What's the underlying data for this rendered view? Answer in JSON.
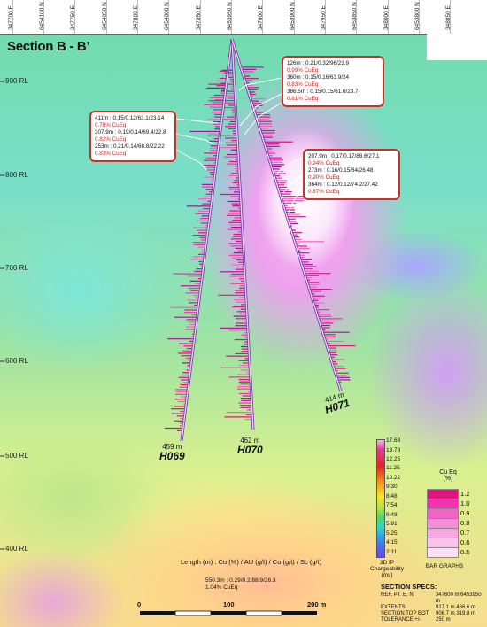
{
  "section_title": "Section B - B’",
  "eastings": [
    "347700 E",
    "6454100 N",
    "347750 E",
    "6454050 N",
    "347800 E",
    "6454000 N",
    "347850 E",
    "6453950 N",
    "347900 E",
    "6453900 N",
    "347950 E",
    "6453850 N",
    "348000 E",
    "6453800 N",
    "348050 E"
  ],
  "elevations": [
    "900 RL",
    "800 RL",
    "700 RL",
    "600 RL",
    "500 RL",
    "400 RL"
  ],
  "callouts": {
    "top_right": {
      "rows": [
        {
          "line": "126m : 0.21/0.32/96/23.9",
          "cueq": "0.99% CuEq"
        },
        {
          "line": "360m : 0.15/0.16/63.9/24",
          "cueq": "0.83% CuEq"
        },
        {
          "line": "386.5m : 0.15/0.15/61.6/23.7",
          "cueq": "0.81% CuEq"
        }
      ]
    },
    "left": {
      "rows": [
        {
          "line": "411m : 0.15/0.12/63.1/23.14",
          "cueq": "0.78% CuEq"
        },
        {
          "line": "307.9m : 0.19/0.14/69.4/22.8",
          "cueq": "0.82% CuEq"
        },
        {
          "line": "253m : 0.21/0.14/68.8/22.22",
          "cueq": "0.83% CuEq"
        }
      ]
    },
    "right": {
      "rows": [
        {
          "line": "207.9m : 0.17/0.17/88.6/27.1",
          "cueq": "0.94% CuEq"
        },
        {
          "line": "273m : 0.16/0.15/84/26.48",
          "cueq": "0.90% CuEq"
        },
        {
          "line": "364m : 0.12/0.12/74.2/27.42",
          "cueq": "0.87% CuEq"
        }
      ]
    }
  },
  "holes": [
    {
      "id": "H069",
      "depth": "459 m"
    },
    {
      "id": "H070",
      "depth": "462 m"
    },
    {
      "id": "H071",
      "depth": "414 m"
    }
  ],
  "ip_legend": {
    "values": [
      "17.68",
      "13.78",
      "12.25",
      "11.25",
      "10.22",
      "9.30",
      "8.48",
      "7.54",
      "6.48",
      "5.91",
      "5.25",
      "4.15",
      "2.11"
    ],
    "title_lines": [
      "3D IP",
      "Chargeability",
      "(mv)"
    ]
  },
  "cueq_legend": {
    "title_lines": [
      "Cu Eq",
      "(%)"
    ],
    "values": [
      "1.2",
      "1.0",
      "0.9",
      "0.8",
      "0.7",
      "0.6",
      "0.5"
    ],
    "colors": [
      "#e0167e",
      "#f233b1",
      "#f463c6",
      "#f58dd8",
      "#f7a8e2",
      "#f9c3eb",
      "#fcdff5"
    ],
    "caption": "BAR GRAPHS"
  },
  "legend_key": {
    "header": "Length (m)  : Cu (%) / AU (g/t) / Co (g/t) / Sc (g/t)",
    "example_line": "550.3m : 0.29/0.2/88.9/26.3",
    "example_cueq": "1.04% CuEq"
  },
  "scale": {
    "labels": [
      "0",
      "100",
      "200 m"
    ]
  },
  "specs": {
    "title": "SECTION SPECS:",
    "rows": [
      {
        "k": "REF. PT. E, N",
        "v": "347600 m   6453950 m"
      },
      {
        "k": "EXTENTS",
        "v": "917.1 m      466.6 m"
      },
      {
        "k": "SECTION TOP BOT",
        "v": "906.7 m      319.8 m"
      },
      {
        "k": "TOLERANCE +/-",
        "v": "250 m"
      }
    ]
  }
}
